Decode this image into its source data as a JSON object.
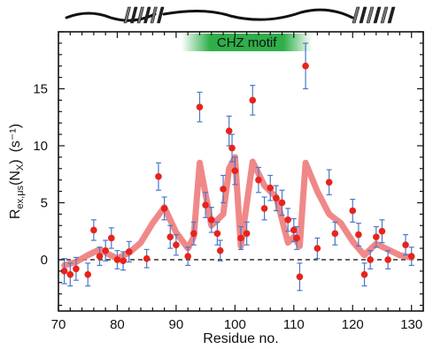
{
  "chart_data": {
    "type": "scatter",
    "xlabel": "Residue no.",
    "ylabel_main": "R",
    "ylabel_sub": "ex,μs",
    "ylabel_paren_open": "(N",
    "ylabel_paren_sub": "X",
    "ylabel_paren_close": ")",
    "ylabel_units": "(s⁻¹)",
    "xlim": [
      70,
      132
    ],
    "ylim": [
      -4.5,
      20
    ],
    "x_ticks": [
      70,
      80,
      90,
      100,
      110,
      120,
      130
    ],
    "y_ticks": [
      0,
      5,
      10,
      15
    ],
    "grid": false,
    "annotations": {
      "motif_label": "CHZ motif",
      "motif_range": [
        93,
        111
      ]
    },
    "colors": {
      "points": "#e8231b",
      "errorbars": "#4a78c8",
      "fit_line": "#ee7b7b",
      "motif_bar": "#2fae4a",
      "zero_line": "#222222"
    },
    "series": [
      {
        "type": "scatter_with_error",
        "points": [
          {
            "x": 71,
            "y": -1.0,
            "err": 1.1
          },
          {
            "x": 72,
            "y": -1.3,
            "err": 1.0
          },
          {
            "x": 73,
            "y": -0.8,
            "err": 1.0
          },
          {
            "x": 75,
            "y": -1.3,
            "err": 1.0
          },
          {
            "x": 76,
            "y": 2.6,
            "err": 0.9
          },
          {
            "x": 77,
            "y": 0.3,
            "err": 0.8
          },
          {
            "x": 78,
            "y": 0.8,
            "err": 0.9
          },
          {
            "x": 79,
            "y": 1.9,
            "err": 0.9
          },
          {
            "x": 80,
            "y": 0.0,
            "err": 0.8
          },
          {
            "x": 81,
            "y": -0.1,
            "err": 0.8
          },
          {
            "x": 82,
            "y": 0.7,
            "err": 0.9
          },
          {
            "x": 85,
            "y": 0.1,
            "err": 0.8
          },
          {
            "x": 87,
            "y": 7.3,
            "err": 1.2
          },
          {
            "x": 88,
            "y": 4.5,
            "err": 1.0
          },
          {
            "x": 89,
            "y": 2.0,
            "err": 1.0
          },
          {
            "x": 90,
            "y": 1.3,
            "err": 0.9
          },
          {
            "x": 92,
            "y": 0.3,
            "err": 0.8
          },
          {
            "x": 93,
            "y": 2.3,
            "err": 1.0
          },
          {
            "x": 94,
            "y": 13.4,
            "err": 1.3
          },
          {
            "x": 95,
            "y": 4.8,
            "err": 1.1
          },
          {
            "x": 96,
            "y": 3.5,
            "err": 1.1
          },
          {
            "x": 97,
            "y": 2.3,
            "err": 1.0
          },
          {
            "x": 97.5,
            "y": 0.8,
            "err": 0.9
          },
          {
            "x": 98,
            "y": 6.2,
            "err": 1.2
          },
          {
            "x": 99,
            "y": 11.3,
            "err": 1.3
          },
          {
            "x": 99.5,
            "y": 9.8,
            "err": 1.2
          },
          {
            "x": 100,
            "y": 7.8,
            "err": 1.2
          },
          {
            "x": 101,
            "y": 1.9,
            "err": 1.0
          },
          {
            "x": 102,
            "y": 2.3,
            "err": 1.0
          },
          {
            "x": 103,
            "y": 14.0,
            "err": 1.3
          },
          {
            "x": 104,
            "y": 7.0,
            "err": 1.1
          },
          {
            "x": 105,
            "y": 4.5,
            "err": 1.0
          },
          {
            "x": 106,
            "y": 6.3,
            "err": 1.1
          },
          {
            "x": 107,
            "y": 5.4,
            "err": 1.1
          },
          {
            "x": 108,
            "y": 5.0,
            "err": 1.1
          },
          {
            "x": 109,
            "y": 3.5,
            "err": 1.0
          },
          {
            "x": 110,
            "y": 2.6,
            "err": 1.0
          },
          {
            "x": 110.5,
            "y": 1.9,
            "err": 1.0
          },
          {
            "x": 111,
            "y": -1.5,
            "err": 1.2
          },
          {
            "x": 112,
            "y": 17.0,
            "err": 2.0
          },
          {
            "x": 114,
            "y": 1.0,
            "err": 0.9
          },
          {
            "x": 116,
            "y": 6.8,
            "err": 1.1
          },
          {
            "x": 117,
            "y": 2.3,
            "err": 1.0
          },
          {
            "x": 120,
            "y": 4.3,
            "err": 1.0
          },
          {
            "x": 121,
            "y": 2.2,
            "err": 1.0
          },
          {
            "x": 122,
            "y": -1.3,
            "err": 1.0
          },
          {
            "x": 123,
            "y": 0.0,
            "err": 0.8
          },
          {
            "x": 124,
            "y": 2.0,
            "err": 0.9
          },
          {
            "x": 125,
            "y": 2.5,
            "err": 1.0
          },
          {
            "x": 126,
            "y": 0.0,
            "err": 0.8
          },
          {
            "x": 129,
            "y": 1.3,
            "err": 0.9
          },
          {
            "x": 130,
            "y": 0.3,
            "err": 0.8
          }
        ]
      },
      {
        "type": "line",
        "x": [
          71,
          73,
          75,
          77,
          80,
          82,
          84,
          86,
          88,
          90,
          92,
          93,
          94,
          96,
          98,
          99,
          100,
          101,
          103,
          105,
          107,
          109,
          110,
          111,
          112,
          114,
          116,
          118,
          120,
          122,
          124,
          126,
          128,
          130
        ],
        "y": [
          -0.5,
          -0.2,
          0.4,
          0.9,
          0.1,
          0.6,
          1.5,
          3.2,
          4.6,
          2.4,
          1.0,
          2.0,
          8.5,
          3.0,
          4.0,
          8.0,
          9.0,
          1.2,
          8.6,
          6.5,
          5.5,
          1.5,
          2.0,
          1.2,
          8.5,
          6.0,
          4.0,
          3.2,
          1.6,
          0.4,
          1.4,
          0.9,
          0.4,
          0.2
        ]
      }
    ]
  }
}
